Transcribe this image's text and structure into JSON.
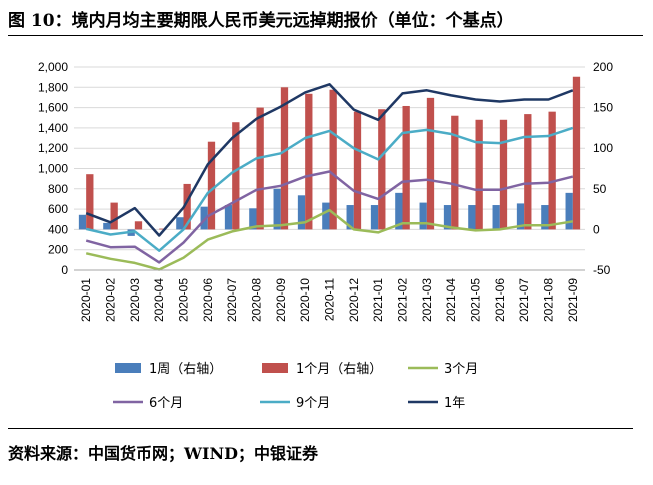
{
  "title": "图 10：境内月均主要期限人民币美元远掉期报价（单位：个基点）",
  "source": "资料来源：中国货币网；WIND；中银证券",
  "chart_data": {
    "type": "bar",
    "categories": [
      "2020-01",
      "2020-02",
      "2020-03",
      "2020-04",
      "2020-05",
      "2020-06",
      "2020-07",
      "2020-08",
      "2020-09",
      "2020-10",
      "2020-11",
      "2020-12",
      "2021-01",
      "2021-02",
      "2021-03",
      "2021-04",
      "2021-05",
      "2021-06",
      "2021-07",
      "2021-08",
      "2021-09"
    ],
    "left_axis": {
      "ylim": [
        0,
        2000
      ],
      "ticks": [
        0,
        200,
        400,
        600,
        800,
        1000,
        1200,
        1400,
        1600,
        1800,
        2000
      ],
      "tick_labels": [
        "0",
        "200",
        "400",
        "600",
        "800",
        "1,000",
        "1,200",
        "1,400",
        "1,600",
        "1,800",
        "2,000"
      ]
    },
    "right_axis": {
      "ylim": [
        -50,
        200
      ],
      "ticks": [
        -50,
        0,
        50,
        100,
        150,
        200
      ],
      "tick_labels": [
        "-50",
        "0",
        "50",
        "100",
        "150",
        "200"
      ]
    },
    "series": [
      {
        "name": "1周（右轴）",
        "type": "bar",
        "axis": "right",
        "color": "#4A7EBB",
        "values": [
          18,
          8,
          -8,
          0,
          15,
          28,
          30,
          26,
          50,
          42,
          33,
          30,
          30,
          45,
          33,
          30,
          30,
          30,
          32,
          30,
          45
        ]
      },
      {
        "name": "1个月（右轴）",
        "type": "bar",
        "axis": "right",
        "color": "#C0504D",
        "values": [
          68,
          33,
          10,
          1,
          56,
          108,
          132,
          150,
          175,
          167,
          172,
          145,
          148,
          152,
          162,
          140,
          135,
          135,
          142,
          145,
          188
        ]
      },
      {
        "name": "3个月",
        "type": "line",
        "axis": "left",
        "color": "#9BBB59",
        "values": [
          165,
          110,
          70,
          5,
          120,
          300,
          380,
          430,
          440,
          470,
          590,
          400,
          370,
          460,
          460,
          420,
          390,
          400,
          440,
          440,
          480
        ]
      },
      {
        "name": "6个月",
        "type": "line",
        "axis": "left",
        "color": "#8064A2",
        "values": [
          290,
          225,
          230,
          75,
          270,
          530,
          660,
          790,
          830,
          920,
          970,
          780,
          700,
          870,
          890,
          850,
          790,
          790,
          850,
          860,
          920
        ]
      },
      {
        "name": "9个月",
        "type": "line",
        "axis": "left",
        "color": "#4BACC6",
        "values": [
          405,
          350,
          380,
          190,
          400,
          760,
          960,
          1100,
          1150,
          1300,
          1370,
          1200,
          1090,
          1350,
          1380,
          1340,
          1260,
          1250,
          1310,
          1320,
          1400
        ]
      },
      {
        "name": "1年",
        "type": "line",
        "axis": "left",
        "color": "#1F3864",
        "values": [
          560,
          470,
          610,
          340,
          615,
          1040,
          1300,
          1490,
          1610,
          1750,
          1830,
          1580,
          1480,
          1740,
          1770,
          1720,
          1680,
          1660,
          1680,
          1680,
          1770
        ]
      }
    ],
    "legend_position": "bottom"
  }
}
